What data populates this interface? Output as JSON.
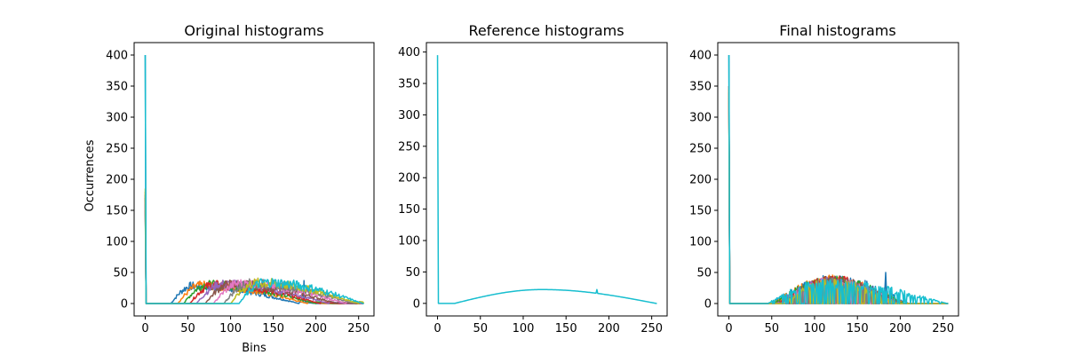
{
  "figure": {
    "background": "#ffffff"
  },
  "chart_data": [
    {
      "type": "line",
      "title": "Original histograms",
      "xlabel": "Bins",
      "ylabel": "Occurrences",
      "xlim": [
        -13,
        268
      ],
      "ylim": [
        -20,
        420
      ],
      "xticks": [
        0,
        50,
        100,
        150,
        200,
        250
      ],
      "yticks": [
        0,
        50,
        100,
        150,
        200,
        250,
        300,
        350,
        400
      ],
      "grid": false,
      "legend": "none",
      "description_of_series": "Many overlapping histogram curves, each with a tall spike at bin 0 and a low hump between roughly bins 25 and 255.",
      "series": [
        {
          "color": "#1f77b4",
          "spike": 400,
          "start": 30,
          "peak_x": 55,
          "peak_y": 28,
          "end": 180
        },
        {
          "color": "#ff7f0e",
          "spike": 180,
          "start": 38,
          "peak_x": 65,
          "peak_y": 29,
          "end": 190
        },
        {
          "color": "#2ca02c",
          "spike": 150,
          "start": 45,
          "peak_x": 72,
          "peak_y": 30,
          "end": 200
        },
        {
          "color": "#d62728",
          "spike": 170,
          "start": 52,
          "peak_x": 80,
          "peak_y": 30,
          "end": 205
        },
        {
          "color": "#9467bd",
          "spike": 160,
          "start": 60,
          "peak_x": 90,
          "peak_y": 31,
          "end": 215
        },
        {
          "color": "#8c564b",
          "spike": 175,
          "start": 70,
          "peak_x": 100,
          "peak_y": 31,
          "end": 225
        },
        {
          "color": "#e377c2",
          "spike": 165,
          "start": 80,
          "peak_x": 110,
          "peak_y": 32,
          "end": 235
        },
        {
          "color": "#7f7f7f",
          "spike": 170,
          "start": 92,
          "peak_x": 122,
          "peak_y": 32,
          "end": 245
        },
        {
          "color": "#bcbd22",
          "spike": 185,
          "start": 100,
          "peak_x": 130,
          "peak_y": 33,
          "end": 250
        },
        {
          "color": "#17becf",
          "spike": 400,
          "start": 110,
          "peak_x": 140,
          "peak_y": 34,
          "end": 255
        }
      ],
      "spike_bump": {
        "x": 186,
        "y": 37
      }
    },
    {
      "type": "line",
      "title": "Reference histograms",
      "xlabel": "",
      "ylabel": "",
      "xlim": [
        -13,
        268
      ],
      "ylim": [
        -20,
        415
      ],
      "xticks": [
        0,
        50,
        100,
        150,
        200,
        250
      ],
      "yticks": [
        0,
        50,
        100,
        150,
        200,
        250,
        300,
        350,
        400
      ],
      "grid": false,
      "legend": "none",
      "series": [
        {
          "color": "#17becf",
          "spike": 395,
          "start": 20,
          "peak_x": 122,
          "peak_y": 22,
          "end": 255
        }
      ],
      "spike_bump": {
        "x": 186,
        "y": 22
      }
    },
    {
      "type": "line",
      "title": "Final histograms",
      "xlabel": "",
      "ylabel": "",
      "xlim": [
        -13,
        268
      ],
      "ylim": [
        -20,
        420
      ],
      "xticks": [
        0,
        50,
        100,
        150,
        200,
        250
      ],
      "yticks": [
        0,
        50,
        100,
        150,
        200,
        250,
        300,
        350,
        400
      ],
      "grid": false,
      "legend": "none",
      "series": [
        {
          "color": "#1f77b4",
          "spike": 400,
          "start": 48,
          "peak_x": 125,
          "peak_y": 38,
          "end": 210
        },
        {
          "color": "#ff7f0e",
          "spike": 330,
          "start": 50,
          "peak_x": 120,
          "peak_y": 37,
          "end": 205
        },
        {
          "color": "#2ca02c",
          "spike": 340,
          "start": 52,
          "peak_x": 118,
          "peak_y": 36,
          "end": 205
        },
        {
          "color": "#d62728",
          "spike": 350,
          "start": 55,
          "peak_x": 122,
          "peak_y": 36,
          "end": 200
        },
        {
          "color": "#9467bd",
          "spike": 345,
          "start": 55,
          "peak_x": 115,
          "peak_y": 35,
          "end": 200
        },
        {
          "color": "#8c564b",
          "spike": 340,
          "start": 58,
          "peak_x": 120,
          "peak_y": 35,
          "end": 200
        },
        {
          "color": "#e377c2",
          "spike": 345,
          "start": 60,
          "peak_x": 118,
          "peak_y": 34,
          "end": 198
        },
        {
          "color": "#7f7f7f",
          "spike": 350,
          "start": 60,
          "peak_x": 117,
          "peak_y": 34,
          "end": 198
        },
        {
          "color": "#bcbd22",
          "spike": 345,
          "start": 62,
          "peak_x": 119,
          "peak_y": 33,
          "end": 196
        },
        {
          "color": "#17becf",
          "spike": 400,
          "start": 45,
          "peak_x": 112,
          "peak_y": 32,
          "end": 255
        }
      ],
      "spike_bump": {
        "x": 183,
        "y": 50
      }
    }
  ]
}
